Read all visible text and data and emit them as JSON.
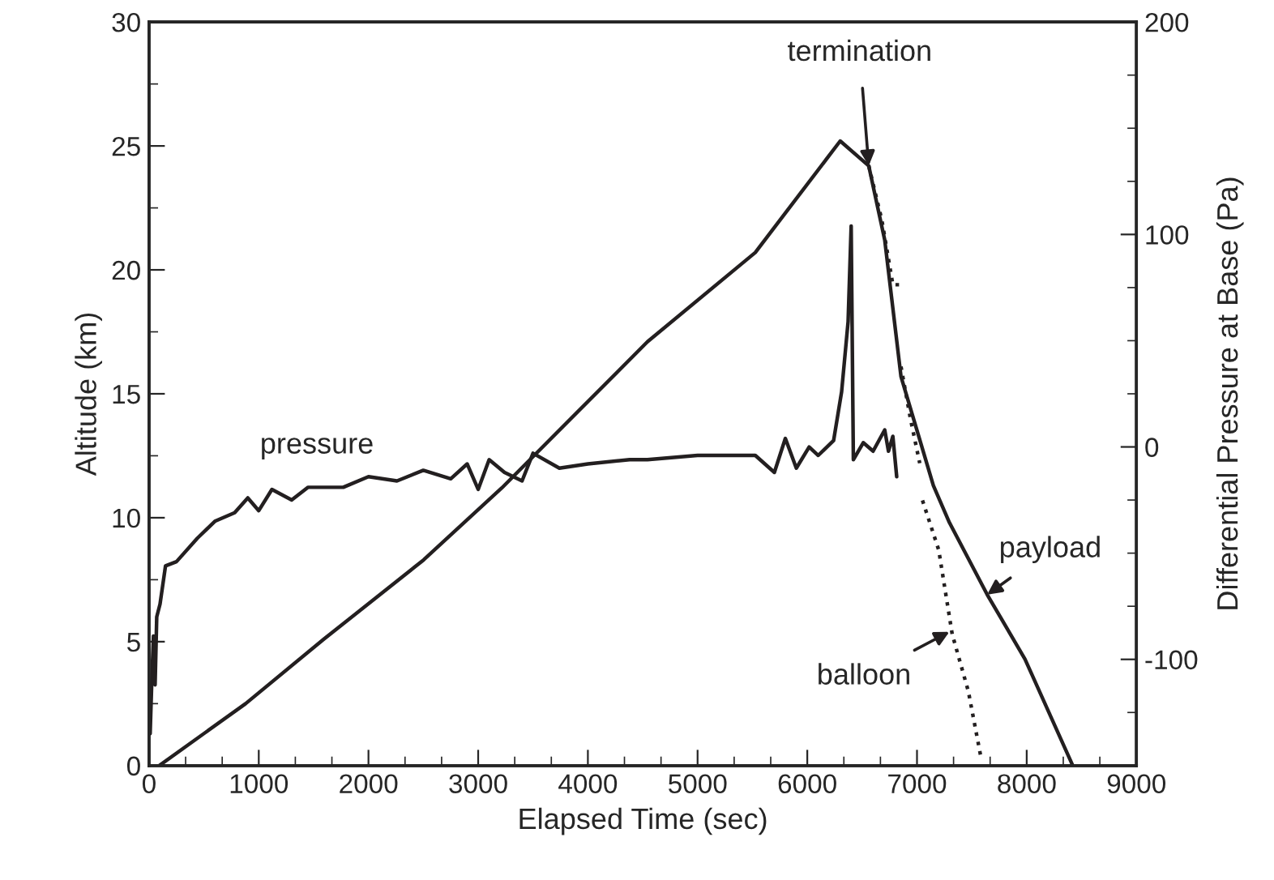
{
  "chart_data": {
    "type": "line",
    "xlabel": "Elapsed Time (sec)",
    "ylabel": "Altitude (km)",
    "y2label": "Differential Pressure at Base (Pa)",
    "xlim": [
      0,
      9000
    ],
    "ylim": [
      0,
      30
    ],
    "y2lim": [
      -150,
      200
    ],
    "xticks": [
      0,
      {
        "value": 333.3,
        "label": null
      },
      {
        "value": 666.7,
        "label": null
      },
      1000,
      {
        "value": 1333.3,
        "label": null
      },
      {
        "value": 1666.7,
        "label": null
      },
      2000,
      {
        "value": 2333.3,
        "label": null
      },
      {
        "value": 2666.7,
        "label": null
      },
      3000,
      {
        "value": 3333.3,
        "label": null
      },
      {
        "value": 3666.7,
        "label": null
      },
      4000,
      {
        "value": 4333.3,
        "label": null
      },
      {
        "value": 4666.7,
        "label": null
      },
      5000,
      {
        "value": 5333.3,
        "label": null
      },
      {
        "value": 5666.7,
        "label": null
      },
      6000,
      {
        "value": 6333.3,
        "label": null
      },
      {
        "value": 6666.7,
        "label": null
      },
      7000,
      {
        "value": 7333.3,
        "label": null
      },
      {
        "value": 7666.7,
        "label": null
      },
      8000,
      {
        "value": 8333.3,
        "label": null
      },
      {
        "value": 8666.7,
        "label": null
      },
      9000
    ],
    "yticks": [
      0,
      {
        "value": 2.5,
        "label": null
      },
      5,
      {
        "value": 7.5,
        "label": null
      },
      10,
      {
        "value": 12.5,
        "label": null
      },
      15,
      {
        "value": 17.5,
        "label": null
      },
      20,
      {
        "value": 22.5,
        "label": null
      },
      25,
      {
        "value": 27.5,
        "label": null
      },
      30
    ],
    "y2ticks": [
      {
        "value": -150,
        "label": null
      },
      {
        "value": -125,
        "label": null
      },
      -100,
      {
        "value": -75,
        "label": null
      },
      {
        "value": -50,
        "label": null
      },
      {
        "value": -25,
        "label": null
      },
      0,
      {
        "value": 25,
        "label": null
      },
      {
        "value": 50,
        "label": null
      },
      {
        "value": 75,
        "label": null
      },
      100,
      {
        "value": 125,
        "label": null
      },
      {
        "value": 150,
        "label": null
      },
      {
        "value": 175,
        "label": null
      },
      200
    ],
    "grid": false,
    "legend": false,
    "series": [
      {
        "color": "#231f20",
        "line_style": "solid",
        "x": [
          93,
          880,
          1593,
          2503,
          3215,
          4543,
          5526,
          6300,
          6560,
          6706,
          6854,
          7149,
          7296,
          7640,
          7984,
          8420
        ],
        "values": [
          0,
          2.5,
          5.1,
          8.3,
          11.2,
          17.1,
          20.7,
          25.2,
          24.2,
          21.2,
          15.7,
          11.3,
          9.8,
          6.9,
          4.3,
          0
        ]
      },
      {
        "color": "#231f20",
        "line_style": "dotted",
        "x": [
          6560,
          6680,
          6780,
          6877
        ],
        "values": [
          24.2,
          22.0,
          19.4,
          19.4
        ]
      },
      {
        "color": "#231f20",
        "line_style": "dotted",
        "x": [
          6854,
          6940,
          7025
        ],
        "values": [
          16.1,
          14.0,
          12.2
        ]
      },
      {
        "color": "#231f20",
        "line_style": "dotted",
        "x": [
          7050,
          7198,
          7321,
          7468,
          7580
        ],
        "values": [
          10.7,
          8.7,
          5.3,
          3.0,
          0.4
        ]
      },
      {
        "color": "#231f20",
        "line_style": "solid",
        "axis": "y2",
        "x": [
          10,
          25,
          40,
          55,
          70,
          100,
          150,
          250,
          440,
          600,
          780,
          900,
          1000,
          1120,
          1300,
          1450,
          1770,
          2000,
          2260,
          2500,
          2750,
          2900,
          3000,
          3100,
          3240,
          3400,
          3500,
          3740,
          4000,
          4380,
          4543,
          5000,
          5526,
          5700,
          5800,
          5900,
          6017,
          6100,
          6240,
          6313,
          6372,
          6400,
          6420,
          6510,
          6600,
          6706,
          6740,
          6780,
          6815
        ],
        "values": [
          -135,
          -110,
          -89,
          -112,
          -80,
          -74,
          -56,
          -54,
          -43,
          -35,
          -31,
          -24,
          -30,
          -20,
          -25,
          -19,
          -19,
          -14,
          -16,
          -11,
          -15,
          -8,
          -20,
          -6,
          -12,
          -16,
          -3,
          -10,
          -8,
          -6,
          -6,
          -4,
          -4,
          -12,
          4,
          -10,
          0,
          -4,
          3,
          26,
          59,
          104,
          -6,
          2,
          -2,
          8,
          -2,
          5,
          -14
        ]
      }
    ],
    "annotations": [
      "pressure",
      {
        "text": "termination",
        "x": 6560,
        "y": 24.2
      },
      {
        "text": "payload",
        "x": 7640,
        "y": 6.9
      },
      {
        "text": "balloon",
        "x": 7296,
        "y": 5.4
      }
    ]
  }
}
